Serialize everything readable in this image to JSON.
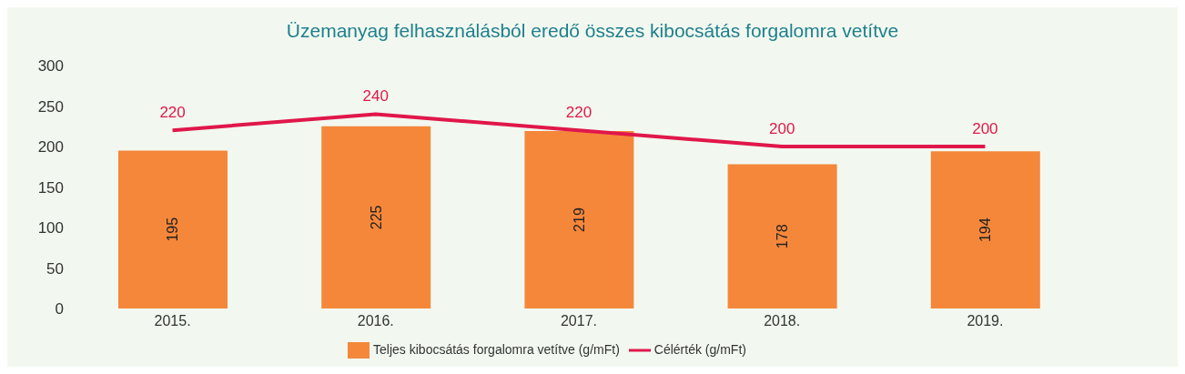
{
  "chart_data": {
    "type": "bar",
    "title": "Üzemanyag felhasználásból eredő összes kibocsátás forgalomra vetítve",
    "categories": [
      "2015.",
      "2016.",
      "2017.",
      "2018.",
      "2019."
    ],
    "series": [
      {
        "name": "Teljes kibocsátás forgalomra vetítve (g/mFt)",
        "color": "#f5873b",
        "values": [
          195,
          225,
          219,
          178,
          194
        ]
      },
      {
        "name": "Célérték (g/mFt)",
        "type": "line",
        "color": "#e0174a",
        "values": [
          220,
          240,
          220,
          200,
          200
        ]
      }
    ],
    "ylim": [
      0,
      300
    ],
    "yticks": [
      0,
      50,
      100,
      150,
      200,
      250,
      300
    ],
    "grid": false,
    "legend": "bottom",
    "data_labels": true,
    "marker": "none",
    "line_style": "solid"
  }
}
